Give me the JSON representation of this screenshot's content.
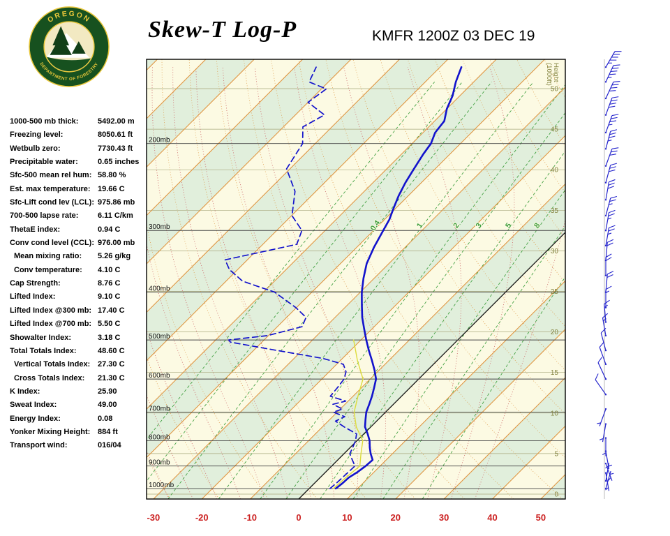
{
  "header": {
    "title": "Skew-T Log-P",
    "station_line": "KMFR 1200Z 03 DEC 19",
    "logo": {
      "top_text": "OREGON",
      "bottom_text": "DEPARTMENT OF FORESTRY",
      "ring_color": "#17511f",
      "text_color": "#e9c73a",
      "inner_bg": "#f2e9c2",
      "tree_color": "#123f18"
    }
  },
  "indices": [
    {
      "label": "1000-500 mb thick:",
      "value": "5492.00 m",
      "indent": false
    },
    {
      "label": "Freezing level:",
      "value": "8050.61 ft",
      "indent": false
    },
    {
      "label": "Wetbulb zero:",
      "value": "7730.43 ft",
      "indent": false
    },
    {
      "label": "Precipitable water:",
      "value": "0.65 inches",
      "indent": false
    },
    {
      "label": "Sfc-500 mean rel hum:",
      "value": "58.80 %",
      "indent": false
    },
    {
      "label": "Est. max temperature:",
      "value": "19.66 C",
      "indent": false
    },
    {
      "label": "Sfc-Lift cond lev (LCL):",
      "value": "975.86 mb",
      "indent": false
    },
    {
      "label": "700-500 lapse rate:",
      "value": "6.11 C/km",
      "indent": false
    },
    {
      "label": "ThetaE index:",
      "value": "0.94 C",
      "indent": false
    },
    {
      "label": "Conv cond level (CCL):",
      "value": "976.00 mb",
      "indent": false
    },
    {
      "label": "Mean mixing ratio:",
      "value": "5.26 g/kg",
      "indent": true
    },
    {
      "label": "Conv temperature:",
      "value": "4.10 C",
      "indent": true
    },
    {
      "label": "Cap Strength:",
      "value": "8.76 C",
      "indent": false
    },
    {
      "label": "Lifted Index:",
      "value": "9.10 C",
      "indent": false
    },
    {
      "label": "Lifted Index @300 mb:",
      "value": "17.40 C",
      "indent": false
    },
    {
      "label": "Lifted Index @700 mb:",
      "value": "5.50 C",
      "indent": false
    },
    {
      "label": "Showalter Index:",
      "value": "3.18 C",
      "indent": false
    },
    {
      "label": "Total Totals Index:",
      "value": "48.60 C",
      "indent": false
    },
    {
      "label": "Vertical Totals Index:",
      "value": "27.30 C",
      "indent": true
    },
    {
      "label": "Cross Totals Index:",
      "value": "21.30 C",
      "indent": true
    },
    {
      "label": "K Index:",
      "value": "25.90",
      "indent": false
    },
    {
      "label": "Sweat Index:",
      "value": "49.00",
      "indent": false
    },
    {
      "label": "Energy Index:",
      "value": "0.08",
      "indent": false
    },
    {
      "label": "Yonker Mixing Height:",
      "value": "884 ft",
      "indent": false
    },
    {
      "label": "Transport wind:",
      "value": "016/04",
      "indent": false
    }
  ],
  "chart_data": {
    "type": "skewt_log_p_sounding",
    "title": "Skew-T Log-P",
    "station": "KMFR",
    "valid_time": "1200Z 03 DEC 19",
    "x_axis": {
      "ticks": [
        -30,
        -20,
        -10,
        0,
        10,
        20,
        30,
        40,
        50
      ],
      "units": "C",
      "label_color": "#cc2222"
    },
    "pressure_axis": {
      "ticks_mb": [
        200,
        300,
        400,
        500,
        600,
        700,
        800,
        900,
        1000
      ],
      "display_top_mb": 135,
      "display_bottom_mb": 1050,
      "scale": "log"
    },
    "height_axis": {
      "label_line1": "Height",
      "label_line2": "(1000ft)",
      "ticks": [
        50,
        45,
        40,
        35,
        30,
        25,
        20,
        15,
        10,
        5,
        0
      ]
    },
    "mixing_ratio_lines_gkg": [
      0.1,
      0.2,
      0.4,
      1,
      2,
      3,
      5,
      8,
      12,
      20
    ],
    "mixing_ratio_labels": [
      "0.4",
      "1",
      "2",
      "3",
      "5",
      "8"
    ],
    "isotherm_step_c": 10,
    "dry_adiabat_step_c": 10,
    "moist_adiabat_step_c": 5,
    "temperature_profile": [
      [
        1000,
        5.5
      ],
      [
        975,
        5.8
      ],
      [
        950,
        5.9
      ],
      [
        925,
        6.6
      ],
      [
        900,
        7.0
      ],
      [
        875,
        7.2
      ],
      [
        850,
        5.5
      ],
      [
        825,
        4.0
      ],
      [
        800,
        2.6
      ],
      [
        775,
        0.8
      ],
      [
        750,
        -1.2
      ],
      [
        725,
        -2.6
      ],
      [
        700,
        -4.0
      ],
      [
        675,
        -5.0
      ],
      [
        650,
        -6.1
      ],
      [
        625,
        -7.4
      ],
      [
        600,
        -8.8
      ],
      [
        575,
        -11.0
      ],
      [
        550,
        -13.5
      ],
      [
        525,
        -16.2
      ],
      [
        500,
        -18.9
      ],
      [
        475,
        -21.6
      ],
      [
        450,
        -24.4
      ],
      [
        425,
        -27.0
      ],
      [
        400,
        -29.7
      ],
      [
        375,
        -32.2
      ],
      [
        350,
        -34.6
      ],
      [
        325,
        -36.4
      ],
      [
        300,
        -38.0
      ],
      [
        285,
        -39.0
      ],
      [
        270,
        -40.5
      ],
      [
        255,
        -42.0
      ],
      [
        240,
        -43.3
      ],
      [
        225,
        -44.4
      ],
      [
        210,
        -45.5
      ],
      [
        200,
        -46.1
      ],
      [
        190,
        -47.5
      ],
      [
        180,
        -48.0
      ],
      [
        170,
        -50.0
      ],
      [
        160,
        -51.5
      ],
      [
        150,
        -53.7
      ],
      [
        140,
        -55.6
      ]
    ],
    "dewpoint_profile": [
      [
        1000,
        4.3
      ],
      [
        975,
        4.5
      ],
      [
        950,
        4.6
      ],
      [
        925,
        4.7
      ],
      [
        900,
        4.8
      ],
      [
        875,
        3.0
      ],
      [
        850,
        1.2
      ],
      [
        825,
        0.5
      ],
      [
        800,
        -0.3
      ],
      [
        775,
        -1.5
      ],
      [
        750,
        -5.5
      ],
      [
        730,
        -8.5
      ],
      [
        715,
        -7.5
      ],
      [
        700,
        -10.8
      ],
      [
        690,
        -9.5
      ],
      [
        675,
        -12.5
      ],
      [
        665,
        -10.5
      ],
      [
        650,
        -14.7
      ],
      [
        625,
        -15.0
      ],
      [
        600,
        -15.4
      ],
      [
        580,
        -16.5
      ],
      [
        560,
        -18.6
      ],
      [
        545,
        -24.0
      ],
      [
        520,
        -38.0
      ],
      [
        505,
        -46.5
      ],
      [
        500,
        -47.3
      ],
      [
        490,
        -40.2
      ],
      [
        470,
        -34.9
      ],
      [
        450,
        -36.0
      ],
      [
        430,
        -40.1
      ],
      [
        400,
        -47.7
      ],
      [
        380,
        -56.6
      ],
      [
        360,
        -61.7
      ],
      [
        344,
        -64.6
      ],
      [
        320,
        -53.0
      ],
      [
        300,
        -54.8
      ],
      [
        280,
        -59.9
      ],
      [
        250,
        -64.3
      ],
      [
        225,
        -70.7
      ],
      [
        200,
        -72.6
      ],
      [
        185,
        -76.0
      ],
      [
        175,
        -74.0
      ],
      [
        165,
        -80.0
      ],
      [
        155,
        -79.0
      ],
      [
        150,
        -84.0
      ],
      [
        140,
        -85.6
      ]
    ],
    "wetbulb_profile": [
      [
        1000,
        5.0
      ],
      [
        950,
        5.3
      ],
      [
        900,
        5.8
      ],
      [
        850,
        3.5
      ],
      [
        800,
        1.2
      ],
      [
        750,
        -3.0
      ],
      [
        700,
        -6.5
      ],
      [
        650,
        -9.0
      ],
      [
        600,
        -11.5
      ],
      [
        550,
        -16.5
      ],
      [
        500,
        -21.5
      ]
    ],
    "wind_barbs_kt": [
      [
        140,
        30,
        45
      ],
      [
        150,
        25,
        45
      ],
      [
        162,
        25,
        40
      ],
      [
        175,
        20,
        40
      ],
      [
        190,
        20,
        35
      ],
      [
        205,
        15,
        35
      ],
      [
        222,
        20,
        30
      ],
      [
        240,
        15,
        30
      ],
      [
        260,
        10,
        30
      ],
      [
        280,
        15,
        25
      ],
      [
        300,
        10,
        25
      ],
      [
        322,
        10,
        25
      ],
      [
        345,
        5,
        20
      ],
      [
        370,
        360,
        20
      ],
      [
        400,
        5,
        20
      ],
      [
        430,
        360,
        15
      ],
      [
        460,
        355,
        15
      ],
      [
        490,
        350,
        15
      ],
      [
        525,
        345,
        10
      ],
      [
        560,
        340,
        10
      ],
      [
        600,
        335,
        10
      ],
      [
        645,
        325,
        8
      ],
      [
        690,
        200,
        5
      ],
      [
        740,
        190,
        5
      ],
      [
        790,
        180,
        5
      ],
      [
        840,
        170,
        5
      ],
      [
        890,
        160,
        5
      ],
      [
        930,
        170,
        4
      ],
      [
        965,
        10,
        4
      ],
      [
        1000,
        16,
        4
      ]
    ],
    "colors": {
      "temperature": "#1212cc",
      "dewpoint": "#1212cc",
      "wetbulb": "#dcdc3c",
      "isotherm": "#e09540",
      "zero_isotherm": "#111111",
      "dry_adiabat": "#dc9540",
      "moist_adiabat": "#cf7070",
      "mixing_ratio": "#3d9e3d",
      "band_cream": "#fcfae3",
      "band_green": "#e1efdc",
      "pressure_line": "#444444",
      "height_line": "#a9a97e",
      "height_text": "#83833f",
      "frame": "#000000",
      "wind_barb": "#2424cc",
      "barb_axis": "#bbbbbb"
    }
  }
}
